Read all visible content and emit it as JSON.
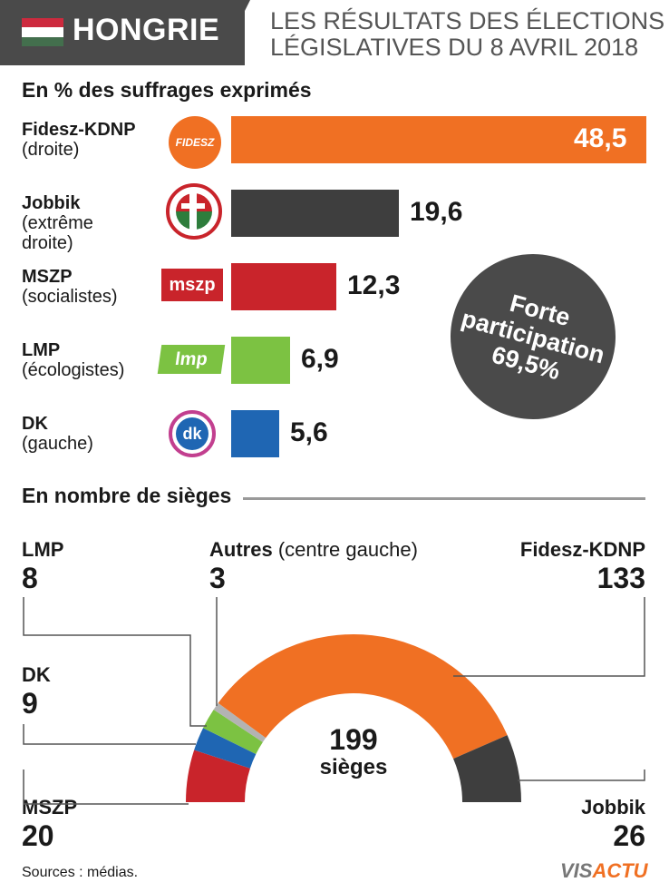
{
  "header": {
    "country": "HONGRIE",
    "title_line1": "LES RÉSULTATS DES ÉLECTIONS",
    "title_line2": "LÉGISLATIVES DU 8 AVRIL 2018"
  },
  "votes_section": "En % des suffrages exprimés",
  "seats_section": "En nombre de sièges",
  "participation": {
    "line1": "Forte",
    "line2": "participation",
    "value": "69,5%"
  },
  "seat_total": {
    "number": "199",
    "label": "sièges"
  },
  "logo_texts": {
    "fidesz": "FIDESZ",
    "mszp": "mszp",
    "lmp": "lmp",
    "dk": "dk"
  },
  "colors": {
    "fidesz": "#f07023",
    "jobbik": "#3e3e3e",
    "mszp": "#c9242b",
    "lmp": "#7cc242",
    "dk": "#1f66b3",
    "autres": "#b3b3b3"
  },
  "chart_data": [
    {
      "type": "bar",
      "title": "En % des suffrages exprimés",
      "categories": [
        "Fidesz-KDNP",
        "Jobbik",
        "MSZP",
        "LMP",
        "DK"
      ],
      "values": [
        48.5,
        19.6,
        12.3,
        6.9,
        5.6
      ],
      "value_labels": [
        "48,5",
        "19,6",
        "12,3",
        "6,9",
        "5,6"
      ],
      "party_names": [
        "Fidesz-KDNP",
        "Jobbik",
        "MSZP",
        "LMP",
        "DK"
      ],
      "party_descriptions": [
        "(droite)",
        "(extrême droite)",
        "(socialistes)",
        "(écologistes)",
        "(gauche)"
      ]
    },
    {
      "type": "pie",
      "title": "En nombre de sièges",
      "categories": [
        "MSZP",
        "DK",
        "LMP",
        "Autres",
        "Fidesz-KDNP",
        "Jobbik"
      ],
      "values": [
        20,
        9,
        8,
        3,
        133,
        26
      ],
      "total": 199,
      "autres_note": "(centre gauche)"
    }
  ],
  "source": "Sources : médias.",
  "brand": {
    "part1": "VIS",
    "part2": "ACTU"
  }
}
